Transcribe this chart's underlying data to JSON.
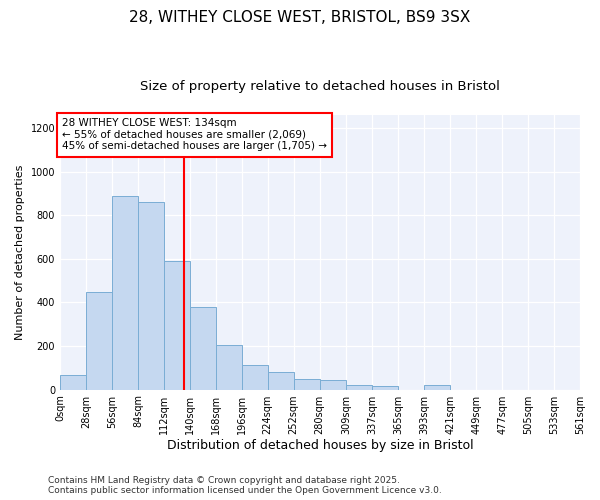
{
  "title1": "28, WITHEY CLOSE WEST, BRISTOL, BS9 3SX",
  "title2": "Size of property relative to detached houses in Bristol",
  "xlabel": "Distribution of detached houses by size in Bristol",
  "ylabel": "Number of detached properties",
  "bins": [
    0,
    28,
    56,
    84,
    112,
    140,
    168,
    196,
    224,
    252,
    280,
    309,
    337,
    365,
    393,
    421,
    449,
    477,
    505,
    533,
    561
  ],
  "bar_values": [
    65,
    450,
    890,
    860,
    590,
    380,
    205,
    115,
    80,
    50,
    45,
    20,
    15,
    0,
    20,
    0,
    0,
    0,
    0,
    0
  ],
  "bar_color": "#c5d8f0",
  "bar_edge_color": "#7aadd4",
  "vline_x": 134,
  "vline_color": "red",
  "annotation_line1": "28 WITHEY CLOSE WEST: 134sqm",
  "annotation_line2": "← 55% of detached houses are smaller (2,069)",
  "annotation_line3": "45% of semi-detached houses are larger (1,705) →",
  "ylim": [
    0,
    1260
  ],
  "xlim": [
    0,
    561
  ],
  "background_color": "#eef2fb",
  "footer_line1": "Contains HM Land Registry data © Crown copyright and database right 2025.",
  "footer_line2": "Contains public sector information licensed under the Open Government Licence v3.0.",
  "title1_fontsize": 11,
  "title2_fontsize": 9.5,
  "xlabel_fontsize": 9,
  "ylabel_fontsize": 8,
  "tick_fontsize": 7,
  "annotation_fontsize": 7.5,
  "footer_fontsize": 6.5,
  "yticks": [
    0,
    200,
    400,
    600,
    800,
    1000,
    1200
  ]
}
